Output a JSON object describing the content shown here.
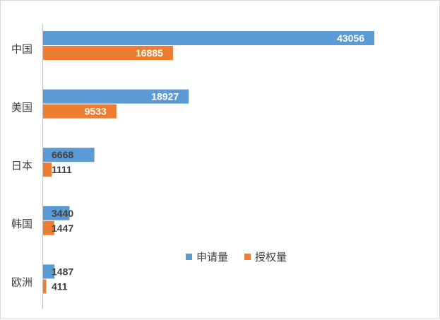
{
  "chart_data": {
    "type": "bar",
    "orientation": "horizontal",
    "categories": [
      "中国",
      "美国",
      "日本",
      "韩国",
      "欧洲"
    ],
    "series": [
      {
        "name": "申请量",
        "color": "#5b9bd5",
        "values": [
          43056,
          18927,
          6668,
          3440,
          1487
        ]
      },
      {
        "name": "授权量",
        "color": "#ed7d31",
        "values": [
          16885,
          9533,
          1111,
          1447,
          411
        ]
      }
    ],
    "title": "",
    "xlabel": "",
    "ylabel": "",
    "xlim": [
      0,
      50000
    ],
    "grid": false,
    "legend_position": "bottom-right"
  }
}
